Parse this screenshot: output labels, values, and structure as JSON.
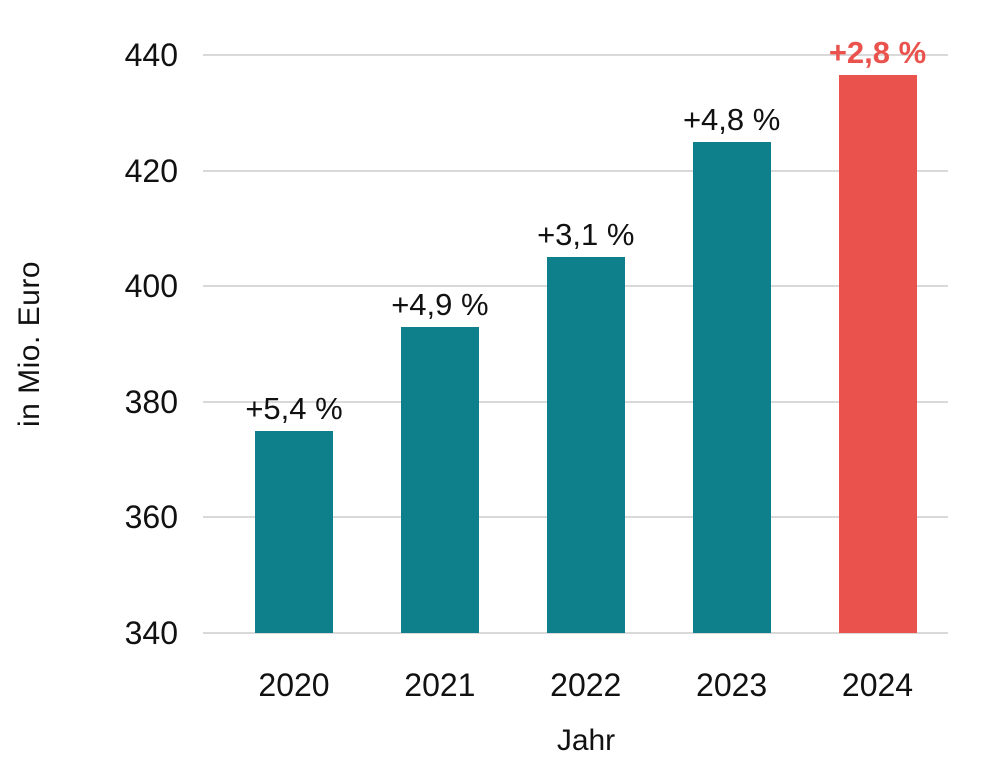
{
  "chart_data": {
    "type": "bar",
    "categories": [
      "2020",
      "2021",
      "2022",
      "2023",
      "2024"
    ],
    "values": [
      375,
      393,
      405,
      425,
      436.5
    ],
    "bar_labels": [
      "+5,4 %",
      "+4,9 %",
      "+3,1 %",
      "+4,8 %",
      "+2,8 %"
    ],
    "xlabel": "Jahr",
    "ylabel": "in Mio. Euro",
    "ylim": [
      340,
      440
    ],
    "yticks": [
      340,
      360,
      380,
      400,
      420,
      440
    ],
    "grid": true,
    "legend": "none",
    "highlight_index": 4
  },
  "colors": {
    "bar_default": "#0d808c",
    "bar_highlight": "#ea534d",
    "bar_label_default": "#111111",
    "bar_label_highlight": "#ea534d",
    "gridline": "#d9d9d9",
    "text": "#111111",
    "background": "#ffffff"
  }
}
